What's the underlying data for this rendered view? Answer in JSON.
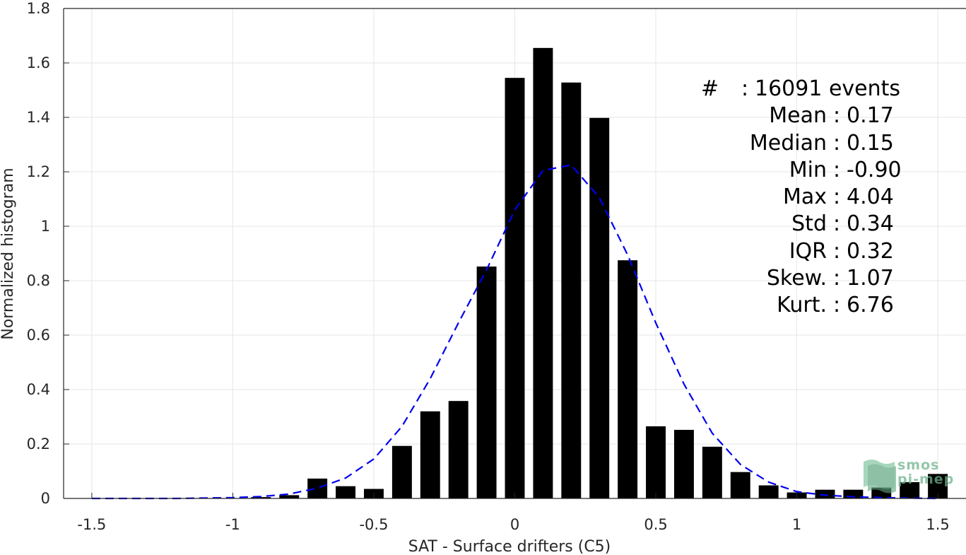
{
  "chart_data": {
    "type": "bar",
    "xlabel": "SAT - Surface drifters (C5)",
    "ylabel": "Normalized histogram",
    "xlim": [
      -1.6,
      1.6
    ],
    "ylim": [
      0,
      1.8
    ],
    "grid": true,
    "x_ticks": [
      "-1.5",
      "-1",
      "-0.5",
      "0",
      "0.5",
      "1",
      "1.5"
    ],
    "y_ticks": [
      "0",
      "0.2",
      "0.4",
      "0.6",
      "0.8",
      "1",
      "1.2",
      "1.4",
      "1.6",
      "1.8"
    ],
    "bar_width": 0.07,
    "bars": {
      "x": [
        -0.9,
        -0.8,
        -0.7,
        -0.6,
        -0.5,
        -0.4,
        -0.3,
        -0.2,
        -0.1,
        0.0,
        0.1,
        0.2,
        0.3,
        0.4,
        0.5,
        0.6,
        0.7,
        0.8,
        0.9,
        1.0,
        1.1,
        1.2,
        1.3,
        1.4,
        1.5
      ],
      "values": [
        0.005,
        0.012,
        0.073,
        0.045,
        0.035,
        0.193,
        0.32,
        0.358,
        0.852,
        1.545,
        1.655,
        1.528,
        1.398,
        0.875,
        0.265,
        0.252,
        0.19,
        0.097,
        0.048,
        0.022,
        0.032,
        0.032,
        0.04,
        0.06,
        0.09
      ]
    },
    "fit_curve": {
      "style": "dashed",
      "color": "#0000ee",
      "x": [
        -1.5,
        -1.2,
        -1.0,
        -0.9,
        -0.8,
        -0.7,
        -0.6,
        -0.5,
        -0.4,
        -0.3,
        -0.2,
        -0.1,
        0.0,
        0.1,
        0.2,
        0.3,
        0.4,
        0.5,
        0.6,
        0.7,
        0.8,
        0.9,
        1.0,
        1.1,
        1.2,
        1.3,
        1.4,
        1.5
      ],
      "y": [
        0.0,
        0.0,
        0.003,
        0.007,
        0.016,
        0.038,
        0.075,
        0.145,
        0.265,
        0.44,
        0.645,
        0.84,
        1.06,
        1.205,
        1.225,
        1.105,
        0.895,
        0.645,
        0.42,
        0.24,
        0.125,
        0.06,
        0.025,
        0.012,
        0.006,
        0.003,
        0.001,
        0.0
      ]
    },
    "annotations": [
      {
        "label": "#",
        "value": "16091 events"
      },
      {
        "label": "Mean",
        "value": "0.17"
      },
      {
        "label": "Median",
        "value": "0.15"
      },
      {
        "label": "Min",
        "value": "-0.90"
      },
      {
        "label": "Max",
        "value": "4.04"
      },
      {
        "label": "Std",
        "value": "0.34"
      },
      {
        "label": "IQR",
        "value": "0.32"
      },
      {
        "label": "Skew.",
        "value": "1.07"
      },
      {
        "label": "Kurt.",
        "value": "6.76"
      }
    ],
    "colors": {
      "bars": "#000000",
      "grid": "#e6e6e6",
      "axis": "#262626"
    }
  },
  "logo": {
    "line1": "smos",
    "line2": "pi-mep"
  }
}
